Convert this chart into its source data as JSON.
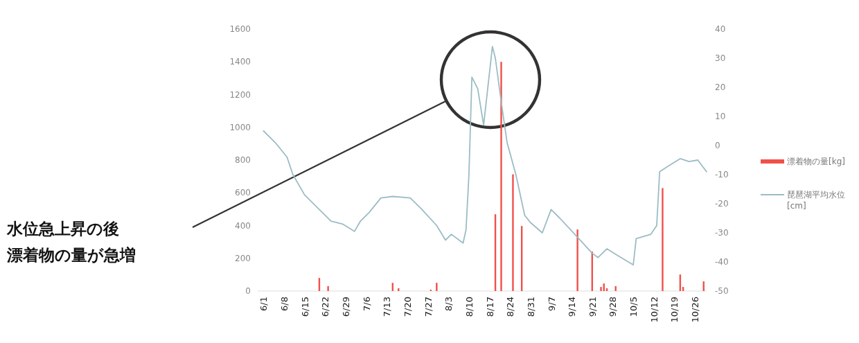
{
  "chart_data": {
    "type": "bar",
    "annotations": [
      "水位急上昇の後",
      "漂着物の量が急増"
    ],
    "xlim": [
      "--05-30",
      "--10-30"
    ],
    "xticks": [
      {
        "value": "--06-01",
        "label": "6/1"
      },
      {
        "value": "--06-08",
        "label": "6/8"
      },
      {
        "value": "--06-15",
        "label": "6/15"
      },
      {
        "value": "--06-22",
        "label": "6/22"
      },
      {
        "value": "--06-29",
        "label": "6/29"
      },
      {
        "value": "--07-06",
        "label": "7/6"
      },
      {
        "value": "--07-13",
        "label": "7/13"
      },
      {
        "value": "--07-20",
        "label": "7/20"
      },
      {
        "value": "--07-27",
        "label": "7/27"
      },
      {
        "value": "--08-03",
        "label": "8/3"
      },
      {
        "value": "--08-10",
        "label": "8/10"
      },
      {
        "value": "--08-17",
        "label": "8/17"
      },
      {
        "value": "--08-24",
        "label": "8/24"
      },
      {
        "value": "--08-31",
        "label": "8/31"
      },
      {
        "value": "--09-07",
        "label": "9/7"
      },
      {
        "value": "--09-14",
        "label": "9/14"
      },
      {
        "value": "--09-21",
        "label": "9/21"
      },
      {
        "value": "--09-28",
        "label": "9/28"
      },
      {
        "value": "--10-05",
        "label": "10/5"
      },
      {
        "value": "--10-12",
        "label": "10/12"
      },
      {
        "value": "--10-19",
        "label": "10/19"
      },
      {
        "value": "--10-26",
        "label": "10/26"
      }
    ],
    "ylim": [
      0,
      1600
    ],
    "yticks": [
      0,
      200,
      400,
      600,
      800,
      1000,
      1200,
      1400,
      1600
    ],
    "y2lim": [
      -50,
      40
    ],
    "y2ticks": [
      -50,
      -40,
      -30,
      -20,
      -10,
      0,
      10,
      20,
      30,
      40
    ],
    "legend": "right",
    "series": [
      {
        "name": "漂着物の量[kg]",
        "color": "#f0504a",
        "x": [
          "--06-20",
          "--06-23",
          "--07-15",
          "--07-17",
          "--07-28",
          "--07-30",
          "--08-19",
          "--08-21",
          "--08-25",
          "--08-28",
          "--09-16",
          "--09-21",
          "--09-24",
          "--09-25",
          "--09-26",
          "--09-29",
          "--10-15",
          "--10-21",
          "--10-22",
          "--10-29"
        ],
        "values": [
          80,
          30,
          50,
          17,
          8,
          50,
          469,
          1400,
          713,
          397,
          376,
          241,
          25,
          46,
          17,
          30,
          629,
          101,
          25,
          59
        ]
      },
      {
        "name": "琵琶湖平均水位[cm]",
        "type": "line",
        "axis": "y2",
        "color": "#9bbcc4",
        "x": [
          "--06-01",
          "--06-05",
          "--06-09",
          "--06-11",
          "--06-15",
          "--06-20",
          "--06-24",
          "--06-28",
          "--07-02",
          "--07-04",
          "--07-07",
          "--07-11",
          "--07-15",
          "--07-21",
          "--07-25",
          "--07-30",
          "--08-02",
          "--08-04",
          "--08-08",
          "--08-09",
          "--08-10",
          "--08-11",
          "--08-13",
          "--08-15",
          "--08-18",
          "--08-19",
          "--08-21",
          "--08-23",
          "--08-26",
          "--08-29",
          "--08-31",
          "--09-04",
          "--09-07",
          "--09-10",
          "--09-16",
          "--09-21",
          "--09-23",
          "--09-26",
          "--09-30",
          "--10-05",
          "--10-06",
          "--10-11",
          "--10-13",
          "--10-14",
          "--10-17",
          "--10-21",
          "--10-24",
          "--10-27",
          "--10-30"
        ],
        "values": [
          5,
          1,
          -4,
          -10,
          -17,
          -22,
          -26,
          -27,
          -29.5,
          -26,
          -23,
          -18,
          -17.5,
          -18,
          -22,
          -27.5,
          -32.5,
          -30.5,
          -33.5,
          -29,
          -10,
          23.5,
          19.5,
          7,
          34,
          30,
          15,
          1,
          -10,
          -24,
          -26.5,
          -30,
          -22,
          -25,
          -31.5,
          -37,
          -38.5,
          -35.5,
          -38,
          -41,
          -32,
          -30.5,
          -27.5,
          -9,
          -7,
          -4.5,
          -5.5,
          -5,
          -9
        ]
      }
    ]
  }
}
